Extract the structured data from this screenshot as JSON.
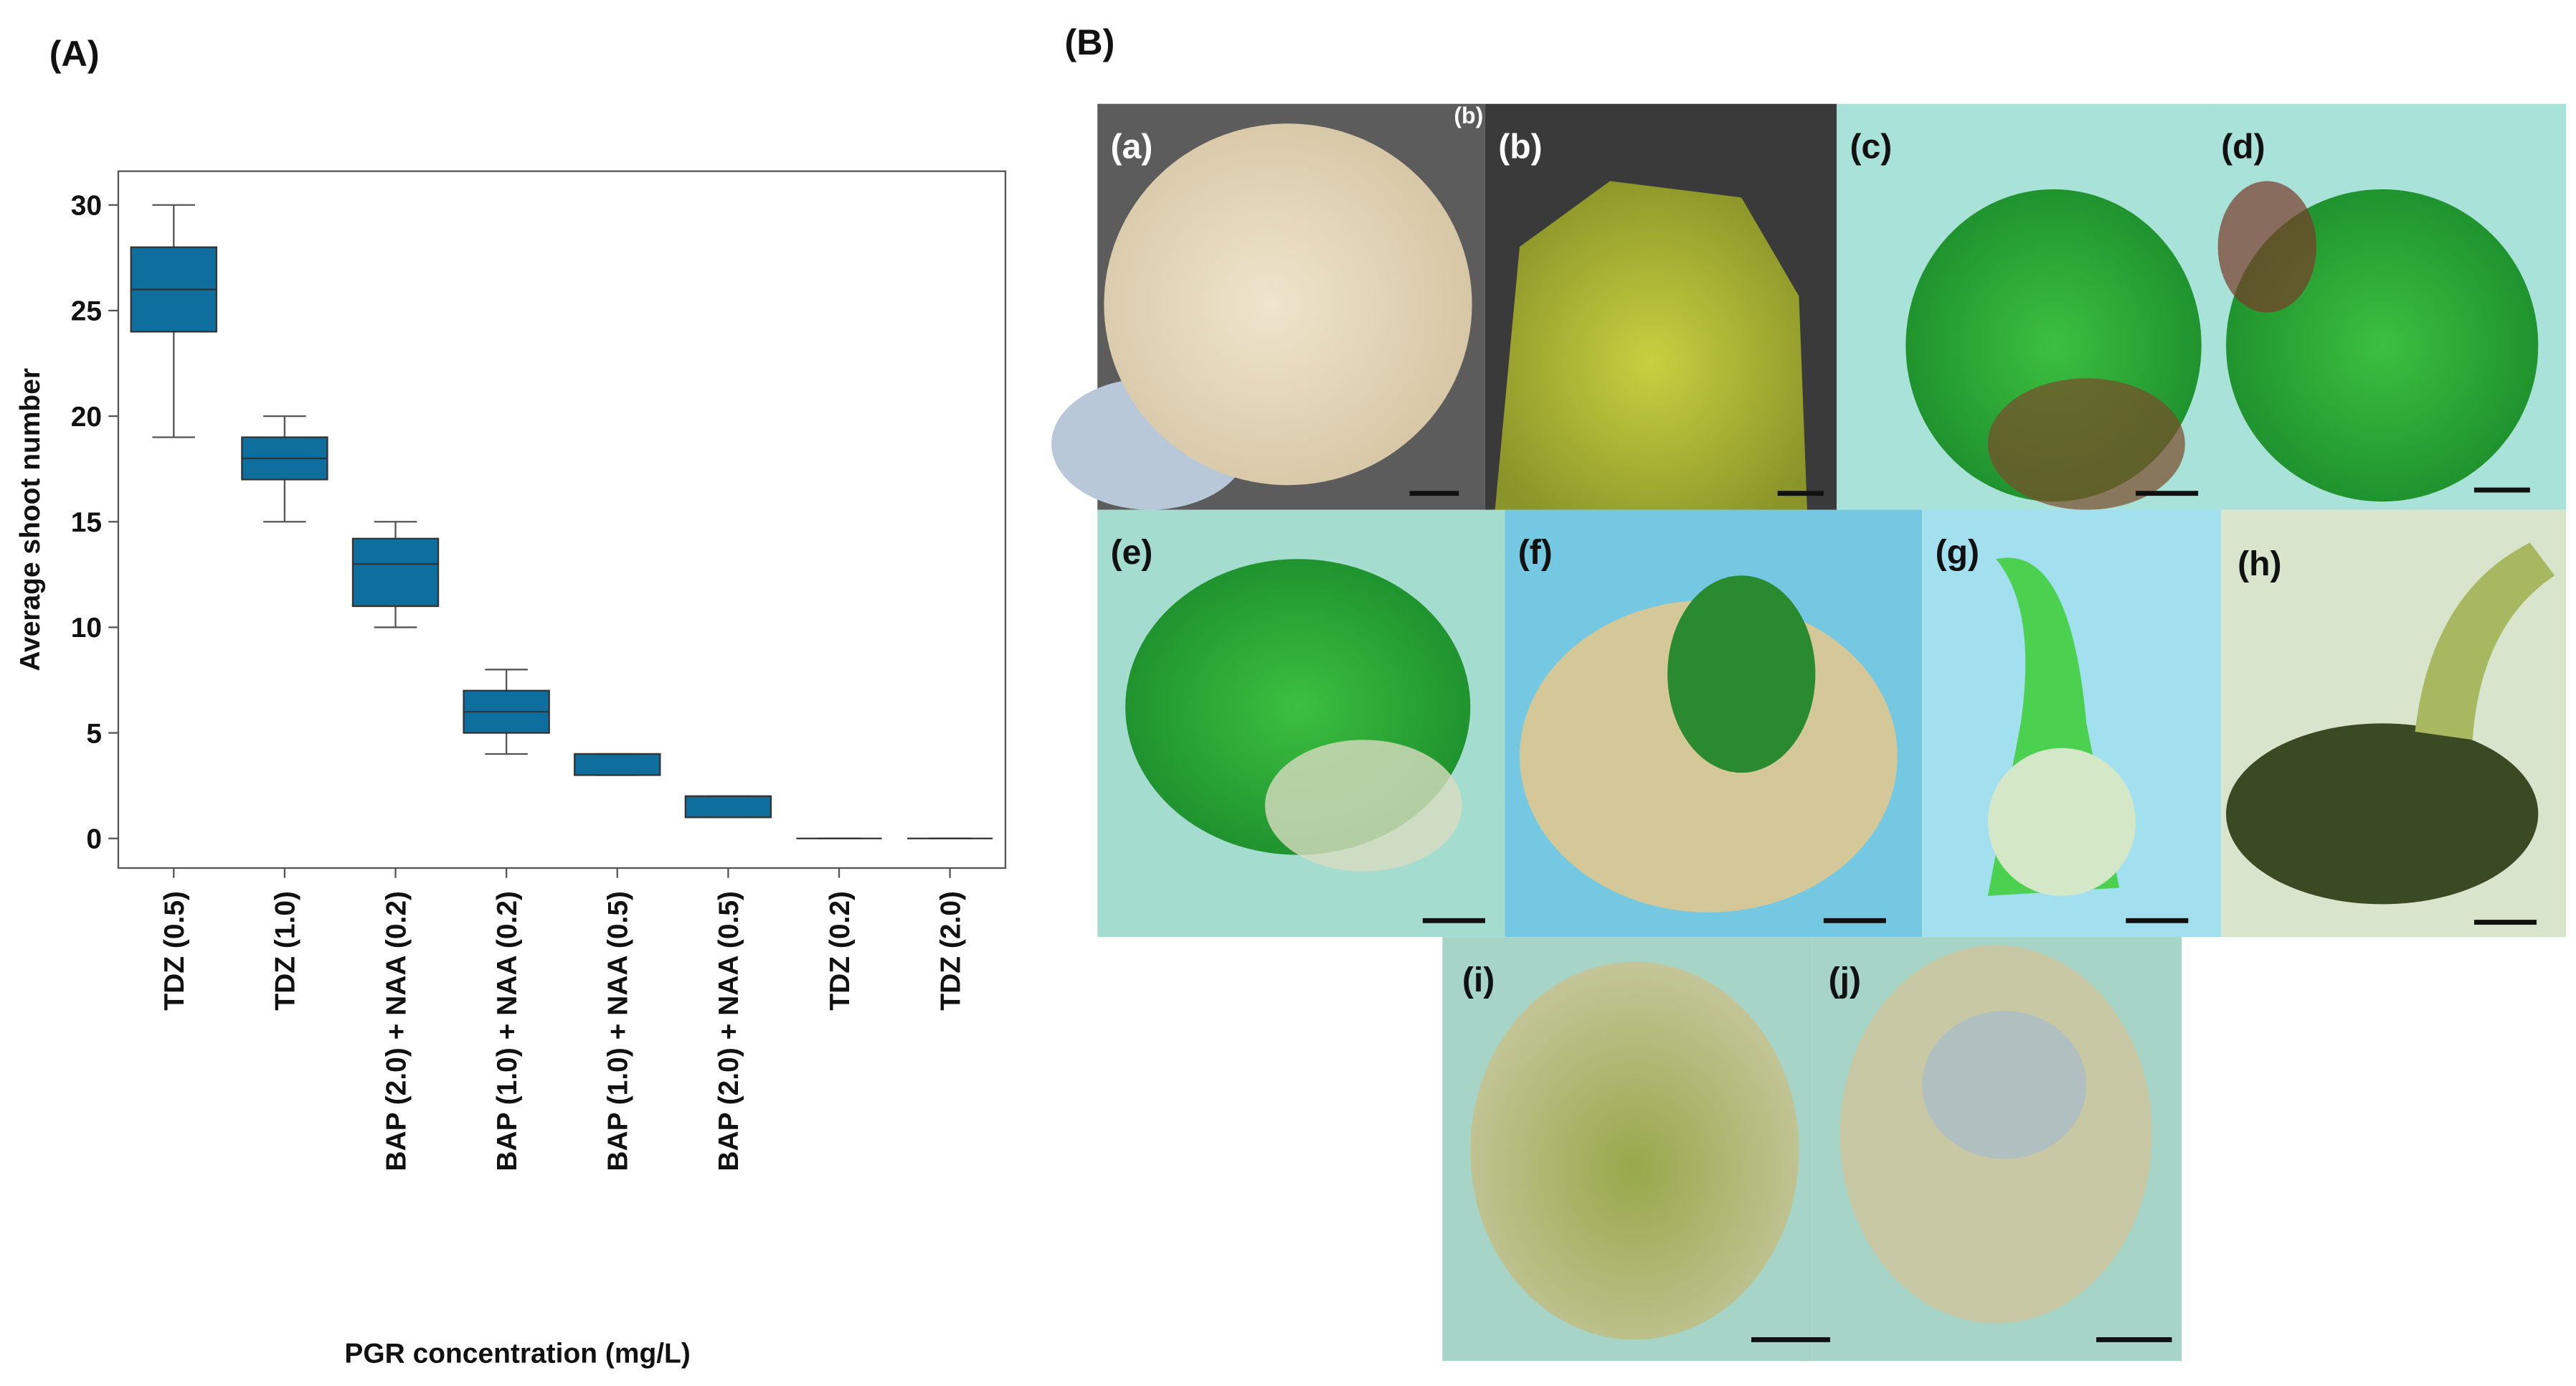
{
  "panel_labels": [
    "(A)",
    "(B)"
  ],
  "chart_data": {
    "type": "box",
    "y_label": "Average shoot number",
    "x_label": "PGR concentration (mg/L)",
    "categories": [
      "TDZ (0.5)",
      "TDZ (1.0)",
      "BAP (2.0) + NAA (0.2)",
      "BAP (1.0) + NAA (0.2)",
      "BAP (1.0) + NAA (0.5)",
      "BAP (2.0) + NAA (0.5)",
      "TDZ (0.2)",
      "TDZ (2.0)"
    ],
    "low": [
      19,
      15,
      10,
      4,
      3,
      1,
      0,
      0
    ],
    "q1": [
      24,
      17,
      11,
      5,
      3,
      1,
      0,
      0
    ],
    "median": [
      26,
      18,
      13,
      6,
      4,
      2,
      0,
      0
    ],
    "q3": [
      28,
      19,
      14.2,
      7,
      4,
      2,
      0,
      0
    ],
    "high": [
      30,
      20,
      15,
      8,
      4,
      2,
      0,
      0
    ],
    "color": "#0e6e9e",
    "ylim": [
      -1.4,
      31.6
    ],
    "yticks": [
      0,
      5,
      10,
      15,
      20,
      25,
      30
    ]
  },
  "photos": [
    "(a)",
    "(b)",
    "(c)",
    "(d)",
    "(e)",
    "(f)",
    "(g)",
    "(h)",
    "(i)",
    "(j)"
  ],
  "photo_overlap_label": "(b)"
}
